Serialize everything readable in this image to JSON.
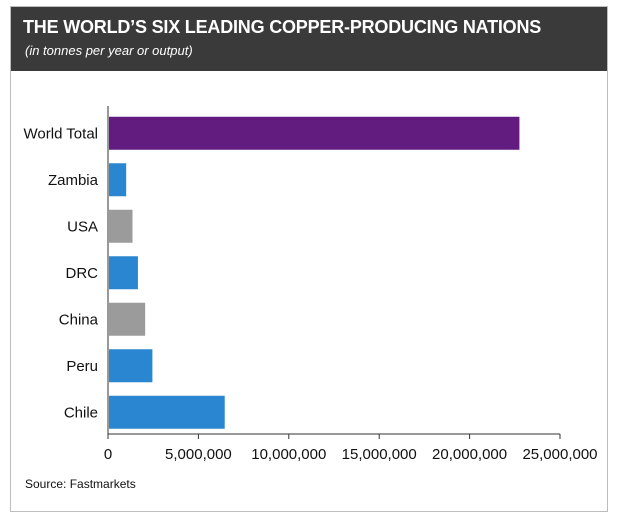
{
  "header": {
    "title": "THE WORLD’S SIX LEADING COPPER-PRODUCING NATIONS",
    "subtitle": "(in tonnes per year or output)"
  },
  "source": "Source: Fastmarkets",
  "chart_data": {
    "type": "bar",
    "orientation": "horizontal",
    "categories": [
      "World Total",
      "Zambia",
      "USA",
      "DRC",
      "China",
      "Peru",
      "Chile"
    ],
    "values": [
      22700000,
      950000,
      1300000,
      1600000,
      2000000,
      2400000,
      6400000
    ],
    "colors": [
      "#621c7f",
      "#2b86d1",
      "#9b9b9b",
      "#2b86d1",
      "#9b9b9b",
      "#2b86d1",
      "#2b86d1"
    ],
    "xlim": [
      0,
      25000000
    ],
    "xticks": [
      0,
      5000000,
      10000000,
      15000000,
      20000000,
      25000000
    ],
    "xtick_labels": [
      "0",
      "5,000,000",
      "10,000,000",
      "15,000,000",
      "20,000,000",
      "25,000,000"
    ],
    "grid": false,
    "legend": "none"
  }
}
